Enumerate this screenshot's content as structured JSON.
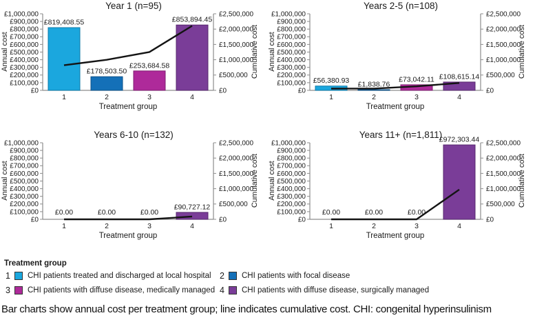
{
  "page": {
    "caption": "Bar charts show annual cost per treatment group; line indicates cumulative cost. CHI: congenital hyperinsulinism"
  },
  "palette": {
    "bar_fills": [
      "#1BA7DE",
      "#1470B8",
      "#AE2A9A",
      "#7A3D98"
    ],
    "bar_edges": [
      "#0E7AA8",
      "#0E5288",
      "#7E1F70",
      "#57296E"
    ],
    "line_color": "#141414",
    "axis_color": "#8c8c8c",
    "tick_text_color": "#1a1a1a"
  },
  "axes": {
    "left_label": "Annual cost",
    "right_label": "Cumulative cost",
    "left_ticks": [
      "£0",
      "£100,000",
      "£200,000",
      "£300,000",
      "£400,000",
      "£500,000",
      "£600,000",
      "£700,000",
      "£800,000",
      "£900,000",
      "£1,000,000"
    ],
    "right_ticks": [
      "£0",
      "£500,000",
      "£1,000,000",
      "£1,500,000",
      "£2,000,000",
      "£2,500,000"
    ]
  },
  "legend": {
    "title": "Treatment group",
    "items": [
      {
        "number": "1",
        "label": "CHI patients treated and discharged at local hospital"
      },
      {
        "number": "2",
        "label": "CHI patients with focal disease"
      },
      {
        "number": "3",
        "label": "CHI patients with diffuse disease, medically managed"
      },
      {
        "number": "4",
        "label": "CHI patients with diffuse disease, surgically managed"
      }
    ]
  },
  "chart_data": [
    {
      "type": "bar+line",
      "title": "Year 1 (n=95)",
      "xlabel": "Treatment group",
      "ylabel_left": "Annual cost",
      "ylabel_right": "Cumulative cost",
      "categories": [
        "1",
        "2",
        "3",
        "4"
      ],
      "bar_values": [
        819408.55,
        178503.5,
        253684.58,
        853894.45
      ],
      "bar_labels": [
        "£819,408.55",
        "£178,503.50",
        "£253,684.58",
        "£853,894.45"
      ],
      "line_values": [
        819408.55,
        997912.05,
        1251596.63,
        2105491.08
      ],
      "ylim_left": [
        0,
        1000000
      ],
      "ylim_right": [
        0,
        2500000
      ]
    },
    {
      "type": "bar+line",
      "title": "Years 2-5 (n=108)",
      "xlabel": "Treatment group",
      "ylabel_left": "Annual cost",
      "ylabel_right": "Cumulative cost",
      "categories": [
        "1",
        "2",
        "3",
        "4"
      ],
      "bar_values": [
        56380.93,
        1838.76,
        73042.11,
        108615.14
      ],
      "bar_labels": [
        "£56,380.93",
        "£1,838.76",
        "£73,042.11",
        "£108,615.14"
      ],
      "line_values": [
        56380.93,
        58219.69,
        131261.8,
        239876.94
      ],
      "ylim_left": [
        0,
        1000000
      ],
      "ylim_right": [
        0,
        2500000
      ]
    },
    {
      "type": "bar+line",
      "title": "Years 6-10 (n=132)",
      "xlabel": "Treatment group",
      "ylabel_left": "Annual cost",
      "ylabel_right": "Cumulative cost",
      "categories": [
        "1",
        "2",
        "3",
        "4"
      ],
      "bar_values": [
        0,
        0,
        0,
        90727.12
      ],
      "bar_labels": [
        "£0.00",
        "£0.00",
        "£0.00",
        "£90,727.12"
      ],
      "line_values": [
        0,
        0,
        0,
        90727.12
      ],
      "ylim_left": [
        0,
        1000000
      ],
      "ylim_right": [
        0,
        2500000
      ]
    },
    {
      "type": "bar+line",
      "title": "Years 11+ (n=1,811)",
      "xlabel": "Treatment group",
      "ylabel_left": "Annual cost",
      "ylabel_right": "Cumulative cost",
      "categories": [
        "1",
        "2",
        "3",
        "4"
      ],
      "bar_values": [
        0,
        0,
        0,
        972303.44
      ],
      "bar_labels": [
        "£0.00",
        "£0.00",
        "£0.00",
        "£972,303.44"
      ],
      "line_values": [
        0,
        0,
        0,
        972303.44
      ],
      "ylim_left": [
        0,
        1000000
      ],
      "ylim_right": [
        0,
        2500000
      ]
    }
  ]
}
